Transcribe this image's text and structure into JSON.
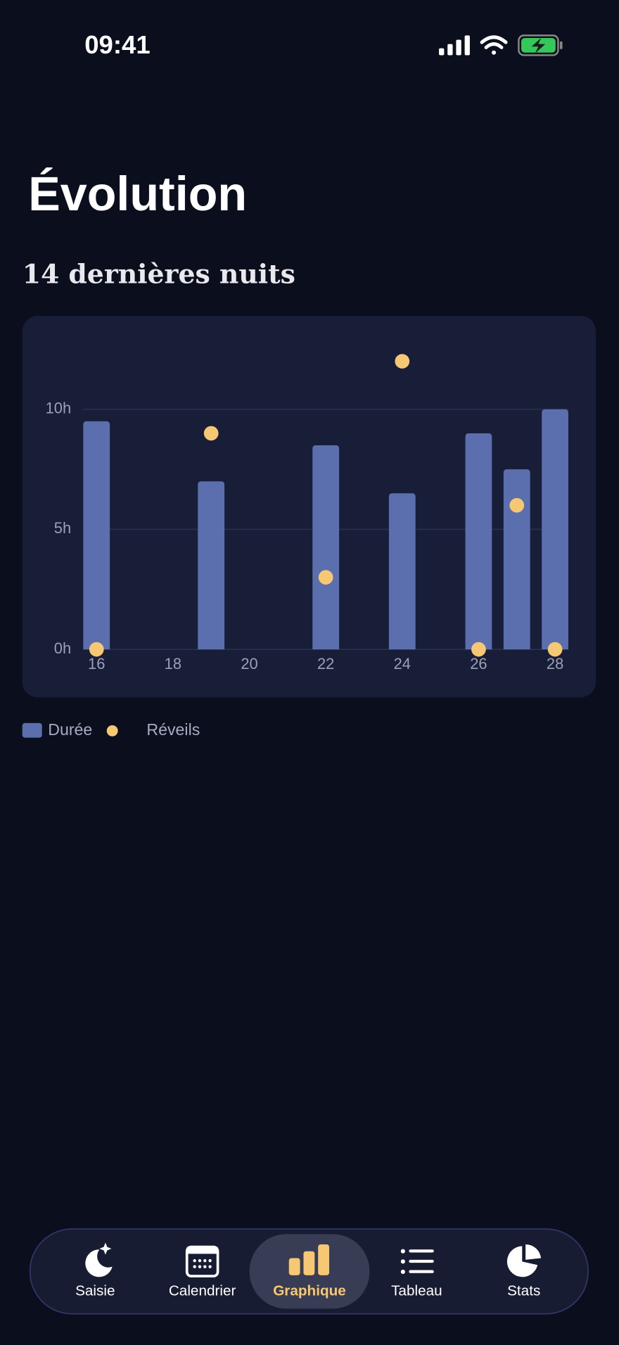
{
  "status_bar": {
    "time": "09:41"
  },
  "header": {
    "title": "Évolution"
  },
  "chart_data": {
    "type": "bar",
    "title": "14 dernières nuits",
    "x": [
      16,
      19,
      22,
      24,
      26,
      27,
      28
    ],
    "series": [
      {
        "name": "Durée",
        "color": "#5b6fae",
        "type": "bar",
        "values": [
          9.5,
          7,
          8.5,
          6.5,
          9,
          7.5,
          10
        ]
      },
      {
        "name": "Réveils",
        "color": "#f7c873",
        "type": "scatter",
        "values": [
          0,
          9,
          3,
          12,
          0,
          6,
          0
        ]
      }
    ],
    "xlim": [
      15.65,
      28.35
    ],
    "xticks": [
      16,
      18,
      20,
      22,
      24,
      26,
      28
    ],
    "ylim": [
      0,
      12.5
    ],
    "yticks": [
      {
        "value": 0,
        "label": "0h"
      },
      {
        "value": 5,
        "label": "5h"
      },
      {
        "value": 10,
        "label": "10h"
      }
    ],
    "grid": true
  },
  "tab_bar": {
    "items": [
      "Saisie",
      "Calendrier",
      "Graphique",
      "Tableau",
      "Stats"
    ],
    "active": 2
  }
}
